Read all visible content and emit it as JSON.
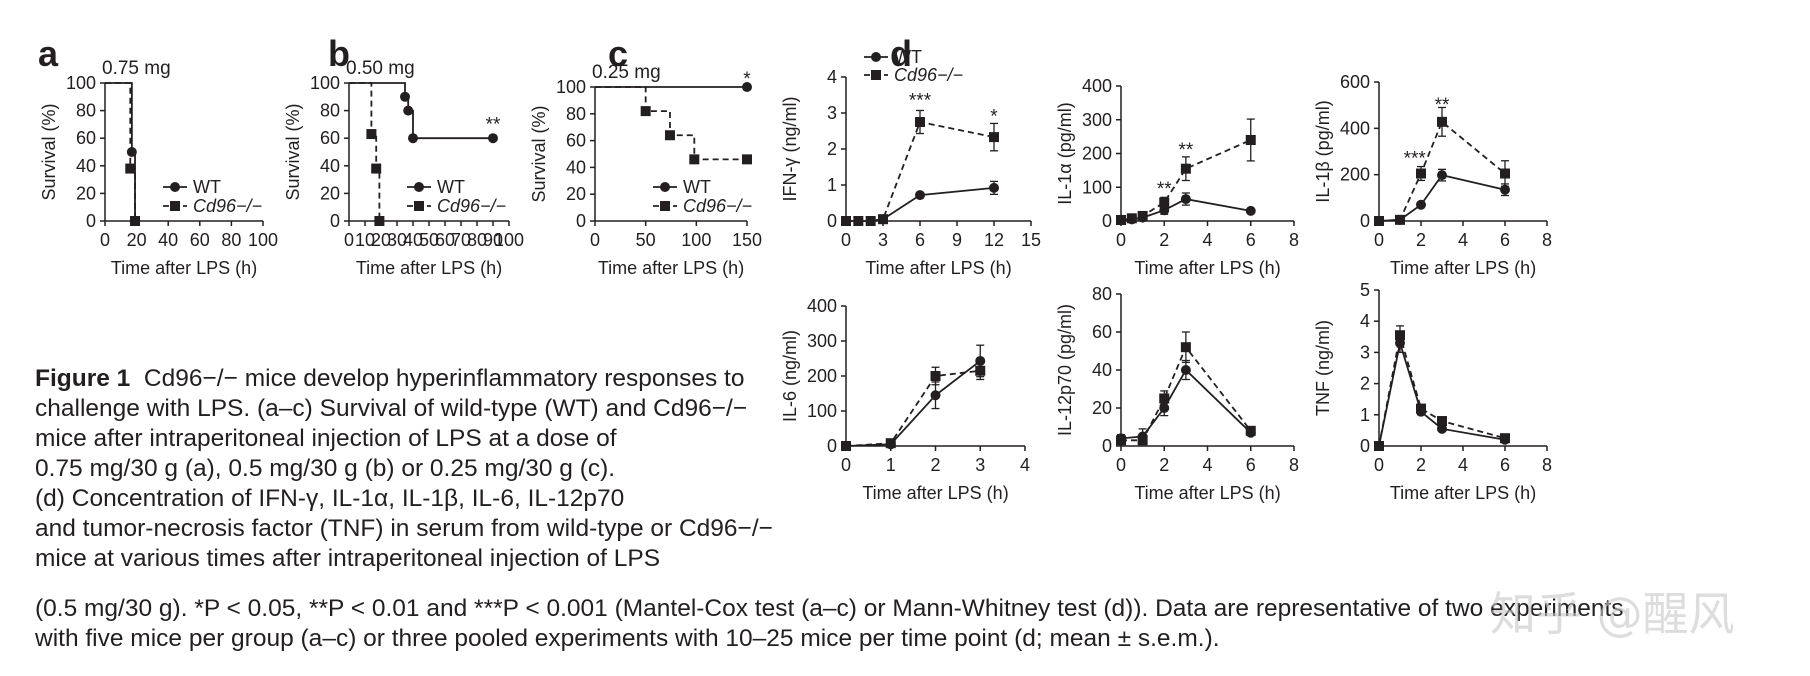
{
  "chart_data": [
    {
      "panel": "a",
      "type": "line",
      "title": "0.75 mg",
      "xlabel": "Time after LPS (h)",
      "ylabel": "Survival (%)",
      "xlim": [
        0,
        100
      ],
      "ylim": [
        0,
        100
      ],
      "xticks": [
        0,
        20,
        40,
        60,
        80,
        100
      ],
      "yticks": [
        0,
        20,
        40,
        60,
        80,
        100
      ],
      "legend": "right",
      "series": [
        {
          "name": "WT",
          "step": true,
          "style": "solid",
          "marker": "circle",
          "x": [
            0,
            17,
            19
          ],
          "y": [
            100,
            50,
            0
          ],
          "markers_x": [
            17,
            19
          ],
          "markers_y": [
            50,
            0
          ]
        },
        {
          "name": "Cd96−/−",
          "step": true,
          "style": "dashed",
          "marker": "square",
          "x": [
            0,
            16,
            19
          ],
          "y": [
            100,
            38,
            0
          ],
          "markers_x": [
            16,
            19
          ],
          "markers_y": [
            38,
            0
          ]
        }
      ],
      "annotations": []
    },
    {
      "panel": "b",
      "type": "line",
      "title": "0.50 mg",
      "xlabel": "Time after LPS (h)",
      "ylabel": "Survival (%)",
      "xlim": [
        0,
        100
      ],
      "ylim": [
        0,
        100
      ],
      "xticks": [
        0,
        10,
        20,
        30,
        40,
        50,
        60,
        70,
        80,
        90,
        100
      ],
      "yticks": [
        0,
        20,
        40,
        60,
        80,
        100
      ],
      "legend": "right",
      "series": [
        {
          "name": "WT",
          "step": true,
          "style": "solid",
          "marker": "circle",
          "x": [
            0,
            35,
            37,
            40,
            90
          ],
          "y": [
            100,
            90,
            80,
            60,
            60
          ],
          "markers_x": [
            35,
            37,
            40,
            90
          ],
          "markers_y": [
            90,
            80,
            60,
            60
          ]
        },
        {
          "name": "Cd96−/−",
          "step": true,
          "style": "dashed",
          "marker": "square",
          "x": [
            0,
            14,
            17,
            19
          ],
          "y": [
            100,
            63,
            38,
            0
          ],
          "markers_x": [
            14,
            17,
            19
          ],
          "markers_y": [
            63,
            38,
            0
          ]
        }
      ],
      "annotations": [
        {
          "text": "**",
          "x": 90,
          "y": 70
        }
      ]
    },
    {
      "panel": "c",
      "type": "line",
      "title": "0.25 mg",
      "xlabel": "Time after LPS (h)",
      "ylabel": "Survival (%)",
      "xlim": [
        0,
        150
      ],
      "ylim": [
        0,
        100
      ],
      "xticks": [
        0,
        50,
        100,
        150
      ],
      "yticks": [
        0,
        20,
        40,
        60,
        80,
        100
      ],
      "legend": "right",
      "series": [
        {
          "name": "WT",
          "step": true,
          "style": "solid",
          "marker": "circle",
          "x": [
            0,
            150
          ],
          "y": [
            100,
            100
          ],
          "markers_x": [
            150
          ],
          "markers_y": [
            100
          ]
        },
        {
          "name": "Cd96−/−",
          "step": true,
          "style": "dashed",
          "marker": "square",
          "x": [
            0,
            50,
            74,
            98,
            150
          ],
          "y": [
            100,
            82,
            64,
            46,
            46
          ],
          "markers_x": [
            50,
            74,
            98,
            150
          ],
          "markers_y": [
            82,
            64,
            46,
            46
          ]
        }
      ],
      "annotations": [
        {
          "text": "*",
          "x": 150,
          "y": 106
        }
      ]
    },
    {
      "panel": "d1",
      "type": "line",
      "xlabel": "Time after LPS (h)",
      "ylabel": "IFN-γ (ng/ml)",
      "xlim": [
        0,
        15
      ],
      "ylim": [
        0,
        4
      ],
      "xticks": [
        0,
        3,
        6,
        9,
        12,
        15
      ],
      "yticks": [
        0,
        1,
        2,
        3,
        4
      ],
      "legend": "top-left",
      "series": [
        {
          "name": "WT",
          "style": "solid",
          "marker": "circle",
          "x": [
            0,
            1,
            2,
            3,
            6,
            12
          ],
          "y": [
            0,
            0,
            0,
            0.05,
            0.72,
            0.92
          ],
          "err": [
            0,
            0,
            0,
            0,
            0.04,
            0.18
          ]
        },
        {
          "name": "Cd96−/−",
          "style": "dashed",
          "marker": "square",
          "x": [
            0,
            1,
            2,
            3,
            6,
            12
          ],
          "y": [
            0,
            0,
            0,
            0.05,
            2.75,
            2.33
          ],
          "err": [
            0,
            0,
            0,
            0,
            0.32,
            0.38
          ]
        }
      ],
      "annotations": [
        {
          "text": "***",
          "x": 6,
          "y": 3.35
        },
        {
          "text": "*",
          "x": 12,
          "y": 2.9
        }
      ]
    },
    {
      "panel": "d2",
      "type": "line",
      "xlabel": "Time after LPS (h)",
      "ylabel": "IL-1α (pg/ml)",
      "xlim": [
        0,
        8
      ],
      "ylim": [
        0,
        400
      ],
      "xticks": [
        0,
        2,
        4,
        6,
        8
      ],
      "yticks": [
        0,
        100,
        200,
        300,
        400
      ],
      "legend": "none",
      "series": [
        {
          "name": "WT",
          "style": "solid",
          "marker": "circle",
          "x": [
            0,
            0.5,
            1,
            2,
            3,
            6
          ],
          "y": [
            3,
            5,
            10,
            32,
            65,
            30
          ],
          "err": [
            0,
            0,
            4,
            12,
            18,
            0
          ]
        },
        {
          "name": "Cd96−/−",
          "style": "dashed",
          "marker": "square",
          "x": [
            0,
            0.5,
            1,
            2,
            3,
            6
          ],
          "y": [
            3,
            8,
            15,
            55,
            155,
            240
          ],
          "err": [
            0,
            0,
            5,
            15,
            35,
            62
          ]
        }
      ],
      "annotations": [
        {
          "text": "**",
          "x": 2,
          "y": 95
        },
        {
          "text": "**",
          "x": 3,
          "y": 210
        }
      ]
    },
    {
      "panel": "d3",
      "type": "line",
      "xlabel": "Time after LPS (h)",
      "ylabel": "IL-1β (pg/ml)",
      "xlim": [
        0,
        8
      ],
      "ylim": [
        0,
        600
      ],
      "xticks": [
        0,
        2,
        4,
        6,
        8
      ],
      "yticks": [
        0,
        200,
        400,
        600
      ],
      "legend": "none",
      "series": [
        {
          "name": "WT",
          "style": "solid",
          "marker": "circle",
          "x": [
            0,
            1,
            2,
            3,
            6
          ],
          "y": [
            0,
            5,
            70,
            198,
            135
          ],
          "err": [
            0,
            0,
            8,
            25,
            25
          ]
        },
        {
          "name": "Cd96−/−",
          "style": "dashed",
          "marker": "square",
          "x": [
            0,
            1,
            2,
            3,
            6
          ],
          "y": [
            0,
            5,
            205,
            428,
            205
          ],
          "err": [
            0,
            0,
            30,
            62,
            55
          ]
        }
      ],
      "annotations": [
        {
          "text": "***",
          "x": 1.7,
          "y": 270
        },
        {
          "text": "**",
          "x": 3,
          "y": 500
        }
      ]
    },
    {
      "panel": "d4",
      "type": "line",
      "xlabel": "Time after LPS (h)",
      "ylabel": "IL-6 (ng/ml)",
      "xlim": [
        0,
        4
      ],
      "ylim": [
        0,
        400
      ],
      "xticks": [
        0,
        1,
        2,
        3,
        4
      ],
      "yticks": [
        0,
        100,
        200,
        300,
        400
      ],
      "legend": "none",
      "series": [
        {
          "name": "WT",
          "style": "solid",
          "marker": "circle",
          "x": [
            0,
            1,
            2,
            3
          ],
          "y": [
            0,
            5,
            145,
            243
          ],
          "err": [
            0,
            3,
            38,
            45
          ]
        },
        {
          "name": "Cd96−/−",
          "style": "dashed",
          "marker": "square",
          "x": [
            0,
            1,
            2,
            3
          ],
          "y": [
            0,
            8,
            200,
            215
          ],
          "err": [
            0,
            3,
            25,
            25
          ]
        }
      ],
      "annotations": []
    },
    {
      "panel": "d5",
      "type": "line",
      "xlabel": "Time after LPS (h)",
      "ylabel": "IL-12p70 (pg/ml)",
      "xlim": [
        0,
        8
      ],
      "ylim": [
        0,
        80
      ],
      "xticks": [
        0,
        2,
        4,
        6,
        8
      ],
      "yticks": [
        0,
        20,
        40,
        60,
        80
      ],
      "legend": "none",
      "series": [
        {
          "name": "WT",
          "style": "solid",
          "marker": "circle",
          "x": [
            0,
            1,
            2,
            3,
            6
          ],
          "y": [
            4,
            5,
            20,
            40,
            7
          ],
          "err": [
            2,
            4,
            4,
            5,
            1
          ]
        },
        {
          "name": "Cd96−/−",
          "style": "dashed",
          "marker": "square",
          "x": [
            0,
            1,
            2,
            3,
            6
          ],
          "y": [
            3,
            3,
            25,
            52,
            8
          ],
          "err": [
            2,
            2,
            4,
            8,
            1
          ]
        }
      ],
      "annotations": []
    },
    {
      "panel": "d6",
      "type": "line",
      "xlabel": "Time after LPS (h)",
      "ylabel": "TNF (ng/ml)",
      "xlim": [
        0,
        8
      ],
      "ylim": [
        0,
        5
      ],
      "xticks": [
        0,
        2,
        4,
        6,
        8
      ],
      "yticks": [
        0,
        1,
        2,
        3,
        4,
        5
      ],
      "legend": "none",
      "series": [
        {
          "name": "WT",
          "style": "solid",
          "marker": "circle",
          "x": [
            0,
            1,
            2,
            3,
            6
          ],
          "y": [
            0,
            3.3,
            1.1,
            0.55,
            0.2
          ],
          "err": [
            0,
            0.3,
            0.1,
            0.05,
            0.05
          ]
        },
        {
          "name": "Cd96−/−",
          "style": "dashed",
          "marker": "square",
          "x": [
            0,
            1,
            2,
            3,
            6
          ],
          "y": [
            0,
            3.55,
            1.2,
            0.8,
            0.25
          ],
          "err": [
            0,
            0.3,
            0.1,
            0.05,
            0.05
          ]
        }
      ],
      "annotations": []
    }
  ],
  "panel_letters": {
    "a": "a",
    "b": "b",
    "c": "c",
    "d": "d"
  },
  "legend_labels": {
    "wt": "WT",
    "ko": "Cd96−/−"
  },
  "caption": {
    "fig": "Figure 1",
    "title": "Cd96−/− mice develop hyperinflammatory responses to",
    "lines": [
      "challenge with LPS. (a–c) Survival of wild-type (WT) and Cd96−/−",
      "mice after intraperitoneal injection of LPS at a dose of",
      "0.75 mg/30 g (a), 0.5 mg/30 g (b) or 0.25 mg/30 g (c).",
      "(d) Concentration of IFN-γ, IL-1α, IL-1β, IL-6, IL-12p70",
      "and tumor-necrosis factor (TNF) in serum from wild-type or Cd96−/−",
      "mice at various times after intraperitoneal injection of LPS",
      "(0.5 mg/30 g). *P < 0.05, **P < 0.01 and ***P < 0.001 (Mantel-Cox test (a–c) or Mann-Whitney test (d)). Data are representative of two experiments",
      "with five mice per group (a–c) or three pooled experiments with 10–25 mice per time point (d; mean ± s.e.m.)."
    ]
  },
  "watermark": "知乎 @醒风"
}
